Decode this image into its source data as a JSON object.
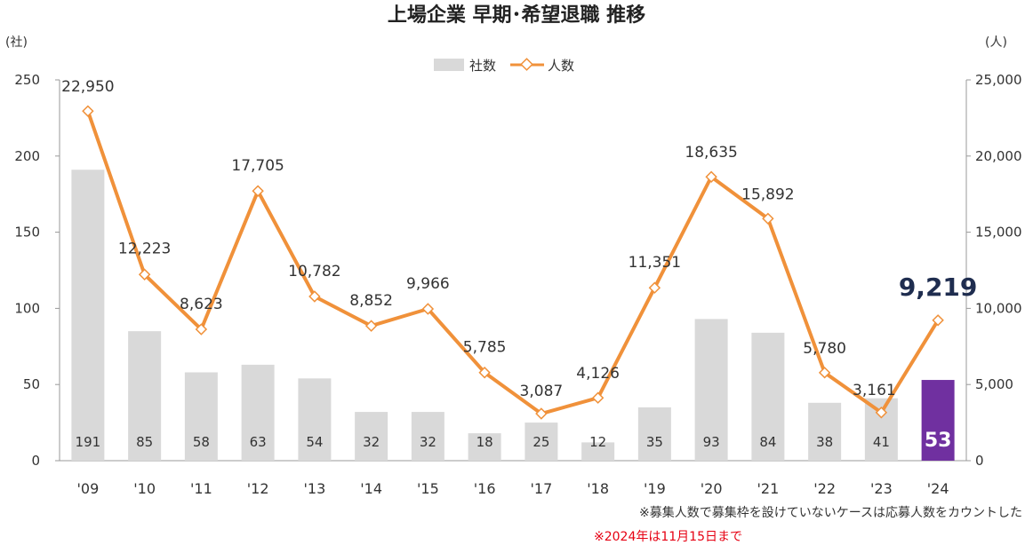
{
  "title": "上場企業 早期･希望退職 推移",
  "left_unit": "(社)",
  "right_unit": "(人)",
  "legend": [
    {
      "label": "社数",
      "kind": "bar"
    },
    {
      "label": "人数",
      "kind": "line"
    }
  ],
  "notes": [
    "※募集人数で募集枠を設けていないケースは応募人数をカウントした",
    "※2024年は11月15日まで"
  ],
  "colors": {
    "bar": "#d9d9d9",
    "bar_highlight": "#7030a0",
    "line": "#f0913a",
    "marker_fill": "#ffffff",
    "axis": "#999999",
    "note_red": "#e60012"
  },
  "chart_data": {
    "type": "bar",
    "title": "上場企業 早期･希望退職 推移",
    "categories": [
      "'09",
      "'10",
      "'11",
      "'12",
      "'13",
      "'14",
      "'15",
      "'16",
      "'17",
      "'18",
      "'19",
      "'20",
      "'21",
      "'22",
      "'23",
      "'24"
    ],
    "series": [
      {
        "name": "社数",
        "type": "bar",
        "axis": "left",
        "values": [
          191,
          85,
          58,
          63,
          54,
          32,
          32,
          18,
          25,
          12,
          35,
          93,
          84,
          38,
          41,
          53
        ],
        "highlight_index": 15
      },
      {
        "name": "人数",
        "type": "line",
        "axis": "right",
        "values": [
          22950,
          12223,
          8623,
          17705,
          10782,
          8852,
          9966,
          5785,
          3087,
          4126,
          11351,
          18635,
          15892,
          5780,
          3161,
          9219
        ],
        "highlight_index": 15
      }
    ],
    "bar_labels": [
      "191",
      "85",
      "58",
      "63",
      "54",
      "32",
      "32",
      "18",
      "25",
      "12",
      "35",
      "93",
      "84",
      "38",
      "41",
      "53"
    ],
    "line_labels": [
      "22,950",
      "12,223",
      "8,623",
      "17,705",
      "10,782",
      "8,852",
      "9,966",
      "5,785",
      "3,087",
      "4,126",
      "11,351",
      "18,635",
      "15,892",
      "5,780",
      "3,161",
      "9,219"
    ],
    "y_left": {
      "min": 0,
      "max": 250,
      "ticks": [
        "0",
        "50",
        "100",
        "150",
        "200",
        "250"
      ]
    },
    "y_right": {
      "min": 0,
      "max": 25000,
      "ticks": [
        "0",
        "5,000",
        "10,000",
        "15,000",
        "20,000",
        "25,000"
      ]
    },
    "legend_position": "top-center",
    "grid": false
  }
}
